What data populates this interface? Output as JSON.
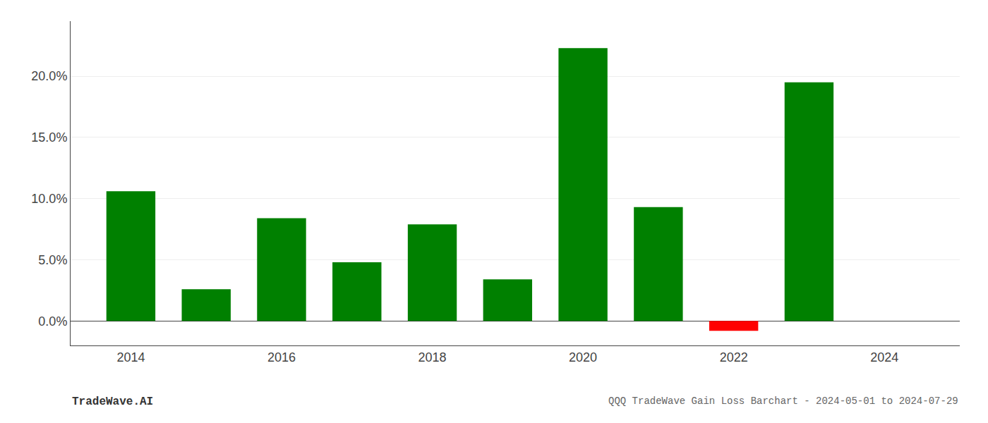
{
  "chart_data": {
    "type": "bar",
    "x": [
      2014,
      2015,
      2016,
      2017,
      2018,
      2019,
      2020,
      2021,
      2022,
      2023
    ],
    "values": [
      0.106,
      0.026,
      0.084,
      0.048,
      0.079,
      0.034,
      0.223,
      0.093,
      -0.008,
      0.195
    ],
    "colors": [
      "#008000",
      "#008000",
      "#008000",
      "#008000",
      "#008000",
      "#008000",
      "#008000",
      "#008000",
      "#ff0000",
      "#008000"
    ],
    "ylim": [
      -0.02,
      0.245
    ],
    "yticks": [
      {
        "value": 0.0,
        "label": "0.0%"
      },
      {
        "value": 0.05,
        "label": "5.0%"
      },
      {
        "value": 0.1,
        "label": "10.0%"
      },
      {
        "value": 0.15,
        "label": "15.0%"
      },
      {
        "value": 0.2,
        "label": "20.0%"
      }
    ],
    "xlim": [
      2013.2,
      2025.0
    ],
    "xticks": [
      2014,
      2016,
      2018,
      2020,
      2022,
      2024
    ],
    "grid": true,
    "annotations": [
      "TradeWave.AI",
      "QQQ TradeWave Gain Loss Barchart - 2024-05-01 to 2024-07-29"
    ]
  }
}
